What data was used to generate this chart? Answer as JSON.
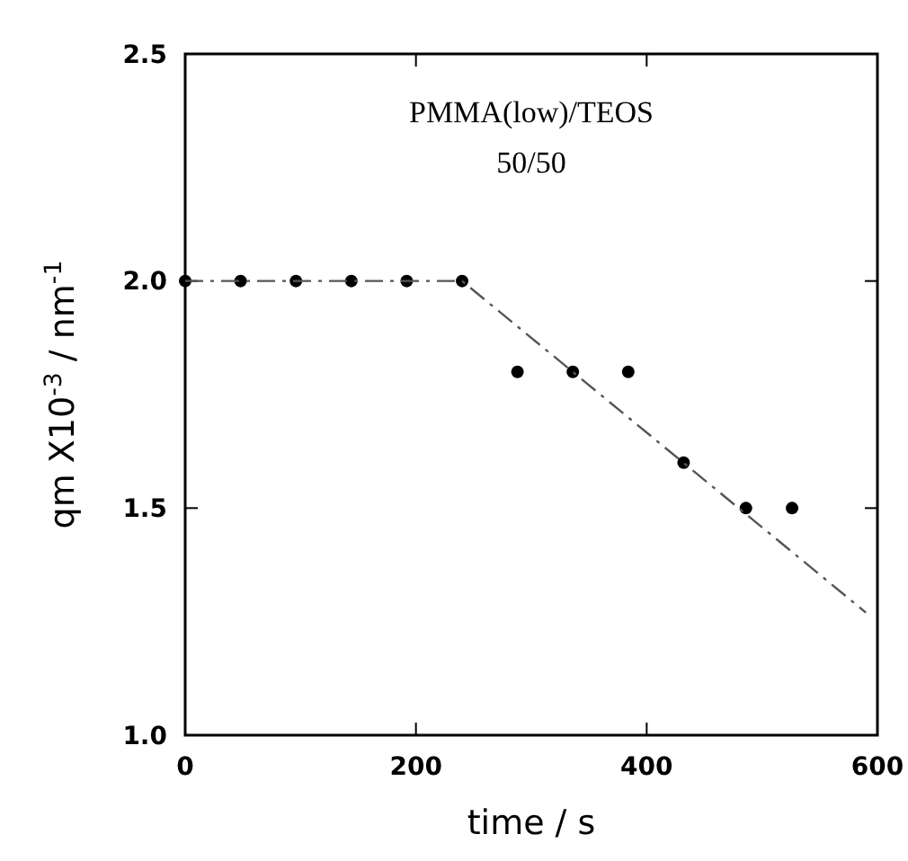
{
  "chart_data": {
    "type": "scatter",
    "xlabel": "time / s",
    "ylabel": "qm X10$^{-3}$ / nm$^{-1}$",
    "annotations": [
      "PMMA(low)/TEOS",
      "50/50"
    ],
    "xlim": [
      0,
      600
    ],
    "xticks": [
      0,
      200,
      400,
      600
    ],
    "ylim": [
      1.0,
      2.5
    ],
    "yticks": [
      {
        "value": 1,
        "label": "1.0"
      },
      1.5,
      {
        "value": 2,
        "label": "2.0"
      },
      2.5
    ],
    "grid": false,
    "series": [
      {
        "color": "#000000",
        "marker": "circle",
        "x": [
          0,
          48,
          96,
          144,
          192,
          240,
          288,
          336,
          384,
          432,
          486,
          526
        ],
        "values": [
          2.0,
          2.0,
          2.0,
          2.0,
          2.0,
          2.0,
          1.8,
          1.8,
          1.8,
          1.6,
          1.5,
          1.5
        ]
      },
      {
        "type": "line",
        "color": "#555555",
        "marker": "none",
        "line_style": "dashed",
        "x": [
          0,
          240,
          590
        ],
        "values": [
          2.0,
          2.0,
          1.27
        ]
      }
    ]
  }
}
